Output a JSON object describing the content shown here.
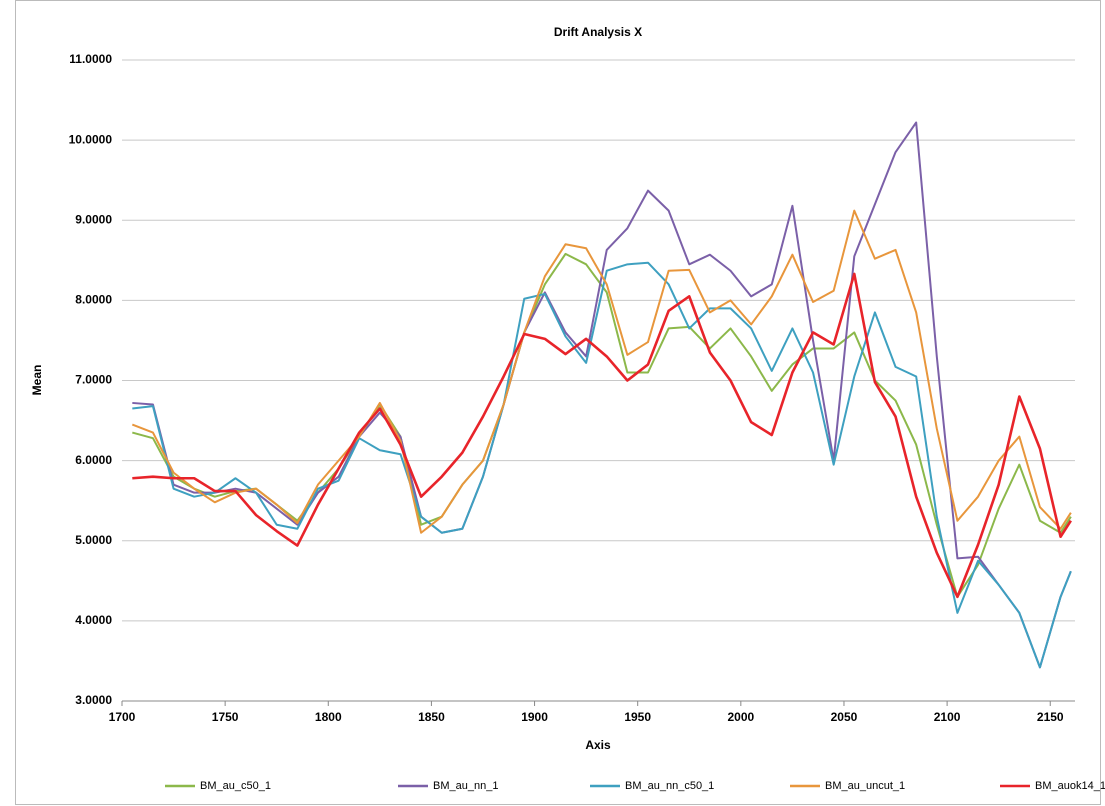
{
  "chart_data": {
    "type": "line",
    "title": "Drift Analysis X",
    "x_label": "Axis",
    "y_label": "Mean",
    "x": [
      1705,
      1715,
      1725,
      1735,
      1745,
      1755,
      1765,
      1775,
      1785,
      1795,
      1805,
      1815,
      1825,
      1835,
      1845,
      1855,
      1865,
      1875,
      1885,
      1895,
      1905,
      1915,
      1925,
      1935,
      1945,
      1955,
      1965,
      1975,
      1985,
      1995,
      2005,
      2015,
      2025,
      2035,
      2045,
      2055,
      2065,
      2075,
      2085,
      2095,
      2105,
      2115,
      2125,
      2135,
      2145,
      2155,
      2160
    ],
    "series": [
      {
        "name": "BM_au_c50_1",
        "color": "#8cb84a",
        "values": [
          6.35,
          6.28,
          5.8,
          5.65,
          5.55,
          5.62,
          5.65,
          5.45,
          5.25,
          5.6,
          5.9,
          6.3,
          6.7,
          6.3,
          5.2,
          5.3,
          5.7,
          6.0,
          6.7,
          7.6,
          8.2,
          8.58,
          8.45,
          8.1,
          7.1,
          7.1,
          7.65,
          7.67,
          7.4,
          7.65,
          7.3,
          6.87,
          7.2,
          7.4,
          7.4,
          7.6,
          7.0,
          6.75,
          6.2,
          5.2,
          4.3,
          4.7,
          5.4,
          5.95,
          5.25,
          5.1,
          5.3
        ]
      },
      {
        "name": "BM_au_nn_1",
        "color": "#7b60a8",
        "values": [
          6.72,
          6.7,
          5.7,
          5.6,
          5.6,
          5.65,
          5.6,
          5.4,
          5.2,
          5.6,
          5.8,
          6.3,
          6.6,
          6.3,
          5.3,
          5.1,
          5.15,
          5.8,
          6.7,
          7.6,
          8.1,
          7.6,
          7.3,
          8.63,
          8.9,
          9.37,
          9.12,
          8.45,
          8.57,
          8.37,
          8.05,
          8.2,
          9.18,
          7.5,
          6.0,
          8.55,
          9.2,
          9.85,
          10.22,
          7.3,
          4.78,
          4.8,
          4.45,
          4.1,
          3.42,
          4.3,
          4.62
        ]
      },
      {
        "name": "BM_au_nn_c50_1",
        "color": "#3ea0c0",
        "values": [
          6.65,
          6.68,
          5.65,
          5.55,
          5.6,
          5.78,
          5.6,
          5.2,
          5.15,
          5.65,
          5.75,
          6.28,
          6.13,
          6.08,
          5.3,
          5.1,
          5.15,
          5.8,
          6.7,
          8.02,
          8.08,
          7.55,
          7.22,
          8.37,
          8.45,
          8.47,
          8.2,
          7.65,
          7.9,
          7.9,
          7.65,
          7.12,
          7.65,
          7.1,
          5.95,
          7.05,
          7.85,
          7.17,
          7.05,
          5.3,
          4.1,
          4.75,
          4.45,
          4.1,
          3.42,
          4.3,
          4.62
        ]
      },
      {
        "name": "BM_au_uncut_1",
        "color": "#e8963c",
        "values": [
          6.45,
          6.35,
          5.85,
          5.65,
          5.48,
          5.6,
          5.65,
          5.45,
          5.22,
          5.7,
          6.0,
          6.3,
          6.72,
          6.25,
          5.1,
          5.3,
          5.7,
          6.0,
          6.7,
          7.6,
          8.3,
          8.7,
          8.65,
          8.2,
          7.32,
          7.48,
          8.37,
          8.38,
          7.85,
          8.0,
          7.7,
          8.05,
          8.57,
          7.98,
          8.12,
          9.12,
          8.52,
          8.63,
          7.85,
          6.4,
          5.25,
          5.55,
          6.0,
          6.3,
          5.42,
          5.15,
          5.35
        ]
      },
      {
        "name": "BM_auok14_1",
        "color": "#e8242a",
        "values": [
          5.78,
          5.8,
          5.78,
          5.78,
          5.62,
          5.62,
          5.32,
          5.12,
          4.94,
          5.45,
          5.9,
          6.35,
          6.65,
          6.2,
          5.55,
          5.8,
          6.1,
          6.55,
          7.05,
          7.58,
          7.52,
          7.33,
          7.52,
          7.3,
          7.0,
          7.2,
          7.87,
          8.05,
          7.35,
          7.0,
          6.48,
          6.32,
          7.1,
          7.6,
          7.45,
          8.33,
          6.98,
          6.55,
          5.55,
          4.85,
          4.3,
          4.95,
          5.7,
          6.8,
          6.15,
          5.05,
          5.25
        ]
      }
    ],
    "xlim": [
      1700,
      2162
    ],
    "xticks": [
      1700,
      1750,
      1800,
      1850,
      1900,
      1950,
      2000,
      2050,
      2100,
      2150
    ],
    "ylim": [
      3,
      11
    ],
    "yticks": [
      {
        "value": 3,
        "label": "3.0000"
      },
      {
        "value": 4,
        "label": "4.0000"
      },
      {
        "value": 5,
        "label": "5.0000"
      },
      {
        "value": 6,
        "label": "6.0000"
      },
      {
        "value": 7,
        "label": "7.0000"
      },
      {
        "value": 8,
        "label": "8.0000"
      },
      {
        "value": 9,
        "label": "9.0000"
      },
      {
        "value": 10,
        "label": "10.0000"
      },
      {
        "value": 11,
        "label": "11.0000"
      }
    ],
    "grid": true,
    "legend": "bottom"
  }
}
